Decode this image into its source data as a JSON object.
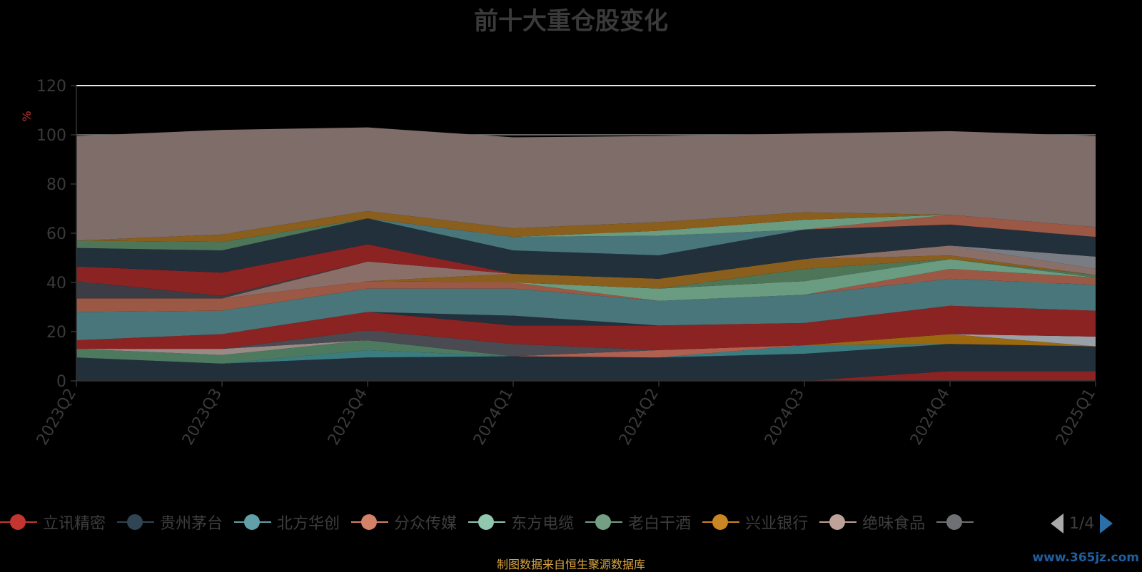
{
  "header": {
    "title": "前十大重仓股变化"
  },
  "chart_data": {
    "type": "area",
    "stacked": true,
    "ylabel": "%",
    "ylim": [
      0,
      120
    ],
    "yticks": [
      0,
      20,
      40,
      60,
      80,
      100,
      120
    ],
    "categories": [
      "2023Q2",
      "2023Q3",
      "2023Q4",
      "2024Q1",
      "2024Q2",
      "2024Q3",
      "2024Q4",
      "2025Q1"
    ],
    "series": [
      {
        "color": "#8b2323",
        "values": [
          0,
          0,
          0,
          0,
          0,
          0,
          4,
          4
        ]
      },
      {
        "color": "#22303c",
        "values": [
          9.5,
          7,
          9.5,
          10,
          9.5,
          11,
          11,
          10
        ]
      },
      {
        "color": "#3b7c80",
        "values": [
          0,
          0,
          3,
          0,
          0,
          3.5,
          0,
          0
        ]
      },
      {
        "color": "#b06050",
        "values": [
          0,
          0,
          0,
          0,
          3,
          0,
          0,
          0
        ]
      },
      {
        "color": "#6fa390",
        "values": [
          0,
          0,
          0,
          0,
          0,
          0,
          0,
          0
        ]
      },
      {
        "color": "#4d7a5f",
        "values": [
          3.5,
          3.5,
          4,
          0,
          0,
          0,
          0,
          0
        ]
      },
      {
        "color": "#9b6810",
        "values": [
          0,
          0,
          0,
          0,
          0,
          0,
          4,
          0
        ]
      },
      {
        "color": "#9a8a85",
        "values": [
          0,
          2.5,
          0,
          0,
          0,
          0,
          0,
          0
        ]
      },
      {
        "color": "#4a4a52",
        "values": [
          0,
          0,
          4,
          5,
          0,
          0,
          0,
          0
        ]
      },
      {
        "color": "#9aa0a8",
        "values": [
          0,
          0,
          0,
          0,
          0,
          0,
          0,
          4
        ]
      },
      {
        "color": "#8b2323",
        "values": [
          3.5,
          6,
          7.5,
          7.5,
          10,
          9,
          11.5,
          10.5
        ]
      },
      {
        "color": "#22303c",
        "values": [
          0,
          0,
          0,
          4,
          0,
          0,
          0,
          0
        ]
      },
      {
        "color": "#48767a",
        "values": [
          11.5,
          9.5,
          9.5,
          11,
          10,
          11.5,
          11,
          10.5
        ]
      },
      {
        "color": "#9a5845",
        "values": [
          5.5,
          5,
          3,
          2.5,
          0,
          0,
          4,
          3
        ]
      },
      {
        "color": "#6a9c82",
        "values": [
          0,
          0,
          0,
          0,
          5,
          5.5,
          4,
          0
        ]
      },
      {
        "color": "#4e7558",
        "values": [
          0,
          0,
          0,
          0,
          0,
          5,
          0,
          1
        ]
      },
      {
        "color": "#8a5e1c",
        "values": [
          0,
          0,
          0,
          3.5,
          4,
          4,
          1.5,
          0
        ]
      },
      {
        "color": "#8a6f68",
        "values": [
          0,
          0,
          8,
          0,
          0,
          0,
          4,
          2.5
        ]
      },
      {
        "color": "#7a7c84",
        "values": [
          0,
          0,
          0,
          0,
          0,
          0,
          0,
          5
        ]
      },
      {
        "color": "#3c3c44",
        "values": [
          7,
          1,
          0,
          0,
          0,
          0,
          0,
          0
        ]
      },
      {
        "color": "#8b2323",
        "values": [
          6,
          9.5,
          7,
          0,
          0,
          0,
          0,
          0
        ]
      },
      {
        "color": "#22303c",
        "values": [
          7.5,
          9,
          10.5,
          9.5,
          9.5,
          12,
          8.5,
          8
        ]
      },
      {
        "color": "#48767a",
        "values": [
          0,
          0,
          0,
          5.5,
          8,
          0,
          0,
          0
        ]
      },
      {
        "color": "#9a5845",
        "values": [
          0,
          0,
          0,
          0,
          0,
          0,
          4,
          4
        ]
      },
      {
        "color": "#6a9c82",
        "values": [
          0,
          0,
          0,
          0,
          2,
          4,
          0,
          0
        ]
      },
      {
        "color": "#4e7558",
        "values": [
          3,
          3.5,
          0,
          0,
          0,
          0,
          0,
          0
        ]
      },
      {
        "color": "#8a5e1c",
        "values": [
          0,
          3,
          3,
          3.5,
          3.5,
          3,
          0,
          0
        ]
      },
      {
        "color": "#7e6d68",
        "values": [
          42.5,
          42.5,
          34,
          37,
          35,
          32,
          34,
          37
        ]
      }
    ]
  },
  "legend": {
    "items": [
      {
        "label": "立讯精密",
        "color": "#c23531"
      },
      {
        "label": "贵州茅台",
        "color": "#2f4554"
      },
      {
        "label": "北方华创",
        "color": "#61a0a8"
      },
      {
        "label": "分众传媒",
        "color": "#d48265"
      },
      {
        "label": "东方电缆",
        "color": "#91c7ae"
      },
      {
        "label": "老白干酒",
        "color": "#749f83"
      },
      {
        "label": "兴业银行",
        "color": "#ca8622"
      },
      {
        "label": "绝味食品",
        "color": "#bda29a"
      },
      {
        "label": "",
        "color": "#6e7074"
      }
    ],
    "page": "1/4"
  },
  "footer": {
    "source": "制图数据来自恒生聚源数据库",
    "watermark": "www.365jz.com"
  }
}
